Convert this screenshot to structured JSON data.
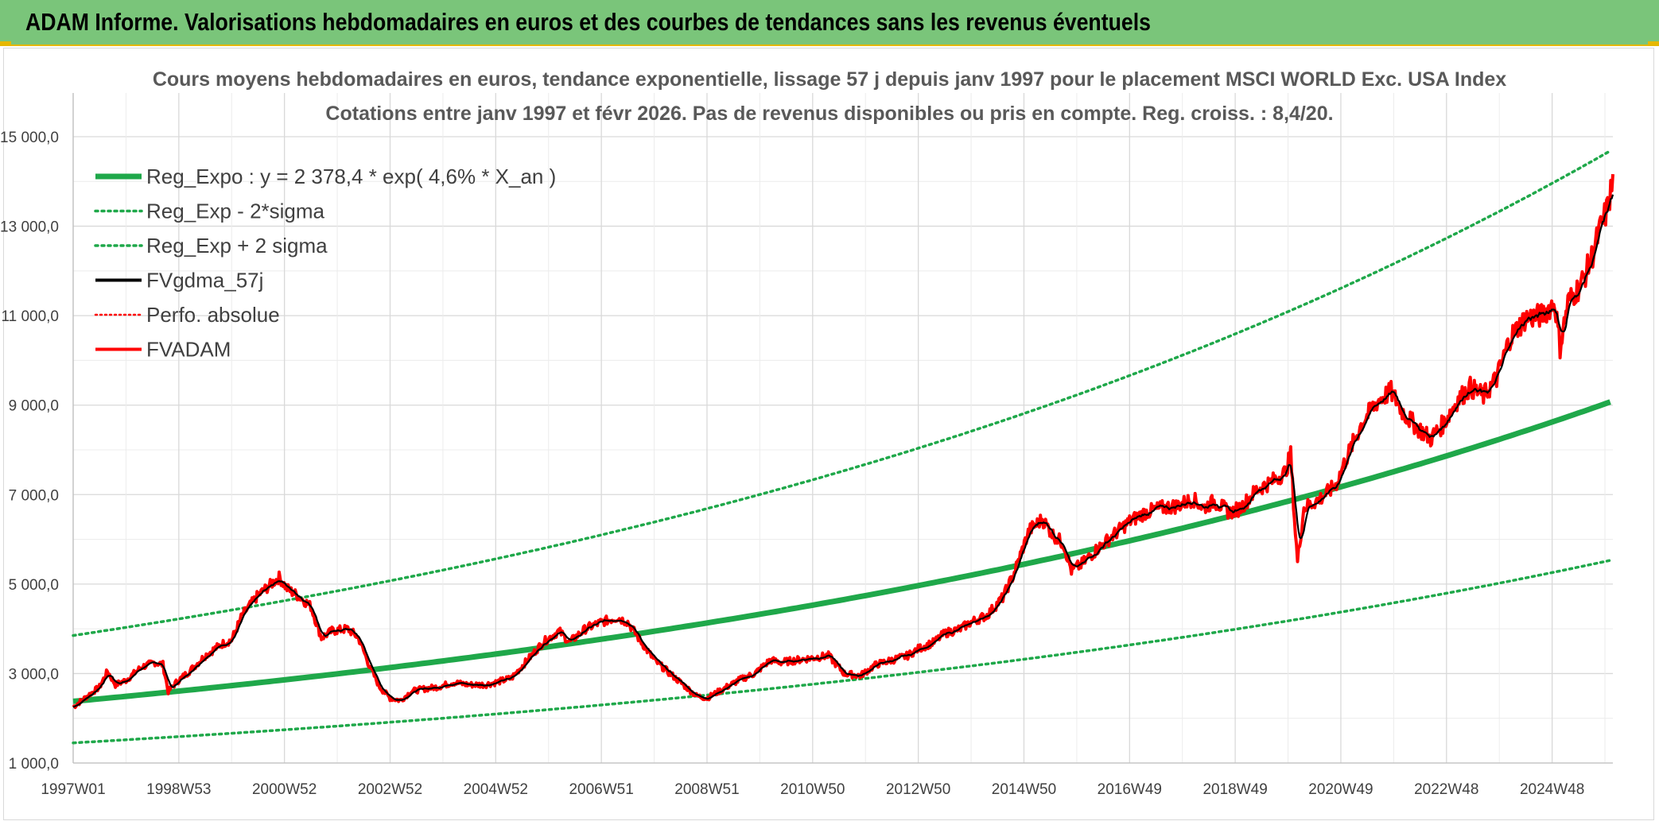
{
  "banner": {
    "title": "ADAM Informe. Valorisations hebdomadaires en euros et des courbes de tendances sans les revenus éventuels",
    "bg_color": "#7ac57a"
  },
  "chart_data": {
    "type": "line",
    "title": "Cours moyens hebdomadaires en euros, tendance exponentielle, lissage 57 j depuis janv 1997 pour le placement MSCI WORLD Exc. USA Index",
    "subtitle": "Cotations entre janv 1997 et févr 2026. Pas de revenus disponibles ou pris en compte. Reg. croiss. : 8,4/20.",
    "xlabel": "",
    "ylabel": "",
    "ylim": [
      1000,
      15000
    ],
    "grid": true,
    "legend_position": "top-left",
    "y_ticks": [
      "1 000,0",
      "3 000,0",
      "5 000,0",
      "7 000,0",
      "9 000,0",
      "11 000,0",
      "13 000,0",
      "15 000,0"
    ],
    "x_ticks": [
      "1997W01",
      "1998W53",
      "2000W52",
      "2002W52",
      "2004W52",
      "2006W51",
      "2008W51",
      "2010W50",
      "2012W50",
      "2014W50",
      "2016W49",
      "2018W49",
      "2020W49",
      "2022W48",
      "2024W48"
    ],
    "x_tick_years": [
      1997.0,
      1999.0,
      2001.0,
      2003.0,
      2005.0,
      2007.0,
      2009.0,
      2011.0,
      2013.0,
      2015.0,
      2017.0,
      2019.0,
      2021.0,
      2023.0,
      2025.0
    ],
    "x_range": [
      1997.0,
      2026.15
    ],
    "series": [
      {
        "name": "Reg_Expo : y = 2 378,4 * exp( 4,6% *  X_an )",
        "color": "#1fa84a",
        "style": "solid-thick",
        "formula": {
          "a": 2378.4,
          "r": 0.046
        }
      },
      {
        "name": "Reg_Exp - 2*sigma",
        "color": "#1fa84a",
        "style": "dotted",
        "formula": {
          "a": 1450,
          "r": 0.046
        }
      },
      {
        "name": "Reg_Exp + 2 sigma",
        "color": "#1fa84a",
        "style": "dotted",
        "formula": {
          "a": 3850,
          "r": 0.046
        }
      },
      {
        "name": "FVgdma_57j",
        "color": "#000000",
        "style": "solid"
      },
      {
        "name": "Perfo. absolue",
        "color": "#ff0000",
        "style": "dotted"
      },
      {
        "name": "FVADAM",
        "color": "#ff0000",
        "style": "solid",
        "points": [
          [
            1997.0,
            2250
          ],
          [
            1997.25,
            2480
          ],
          [
            1997.5,
            2700
          ],
          [
            1997.65,
            3050
          ],
          [
            1997.8,
            2750
          ],
          [
            1998.0,
            2850
          ],
          [
            1998.3,
            3150
          ],
          [
            1998.55,
            3250
          ],
          [
            1998.7,
            3200
          ],
          [
            1998.8,
            2600
          ],
          [
            1998.95,
            2800
          ],
          [
            1999.2,
            3050
          ],
          [
            1999.5,
            3400
          ],
          [
            1999.8,
            3650
          ],
          [
            2000.0,
            3750
          ],
          [
            2000.2,
            4300
          ],
          [
            2000.5,
            4750
          ],
          [
            2000.75,
            5000
          ],
          [
            2000.9,
            5150
          ],
          [
            2001.05,
            4900
          ],
          [
            2001.3,
            4700
          ],
          [
            2001.5,
            4500
          ],
          [
            2001.7,
            3800
          ],
          [
            2001.9,
            3950
          ],
          [
            2002.2,
            4000
          ],
          [
            2002.4,
            3800
          ],
          [
            2002.6,
            3200
          ],
          [
            2002.8,
            2700
          ],
          [
            2003.0,
            2450
          ],
          [
            2003.2,
            2400
          ],
          [
            2003.4,
            2600
          ],
          [
            2003.6,
            2650
          ],
          [
            2003.9,
            2700
          ],
          [
            2004.2,
            2800
          ],
          [
            2004.5,
            2750
          ],
          [
            2004.8,
            2750
          ],
          [
            2005.0,
            2800
          ],
          [
            2005.3,
            2900
          ],
          [
            2005.6,
            3300
          ],
          [
            2005.9,
            3700
          ],
          [
            2006.2,
            3950
          ],
          [
            2006.4,
            3700
          ],
          [
            2006.7,
            4000
          ],
          [
            2007.0,
            4150
          ],
          [
            2007.3,
            4250
          ],
          [
            2007.5,
            4150
          ],
          [
            2007.7,
            3800
          ],
          [
            2008.0,
            3300
          ],
          [
            2008.2,
            3100
          ],
          [
            2008.5,
            2800
          ],
          [
            2008.8,
            2500
          ],
          [
            2009.0,
            2450
          ],
          [
            2009.3,
            2650
          ],
          [
            2009.6,
            2850
          ],
          [
            2009.9,
            3000
          ],
          [
            2010.2,
            3300
          ],
          [
            2010.4,
            3250
          ],
          [
            2010.7,
            3300
          ],
          [
            2011.0,
            3350
          ],
          [
            2011.3,
            3400
          ],
          [
            2011.6,
            3000
          ],
          [
            2011.9,
            2950
          ],
          [
            2012.2,
            3200
          ],
          [
            2012.5,
            3300
          ],
          [
            2012.8,
            3400
          ],
          [
            2013.0,
            3550
          ],
          [
            2013.3,
            3700
          ],
          [
            2013.5,
            3900
          ],
          [
            2013.8,
            4000
          ],
          [
            2014.0,
            4150
          ],
          [
            2014.3,
            4300
          ],
          [
            2014.6,
            4700
          ],
          [
            2014.8,
            5200
          ],
          [
            2015.1,
            6200
          ],
          [
            2015.35,
            6450
          ],
          [
            2015.55,
            6100
          ],
          [
            2015.75,
            5900
          ],
          [
            2015.9,
            5300
          ],
          [
            2016.1,
            5450
          ],
          [
            2016.4,
            5800
          ],
          [
            2016.7,
            6100
          ],
          [
            2017.0,
            6400
          ],
          [
            2017.3,
            6600
          ],
          [
            2017.6,
            6700
          ],
          [
            2017.9,
            6750
          ],
          [
            2018.2,
            6900
          ],
          [
            2018.4,
            6700
          ],
          [
            2018.6,
            6850
          ],
          [
            2018.9,
            6600
          ],
          [
            2019.1,
            6700
          ],
          [
            2019.4,
            7100
          ],
          [
            2019.7,
            7300
          ],
          [
            2019.95,
            7500
          ],
          [
            2020.05,
            7900
          ],
          [
            2020.12,
            6500
          ],
          [
            2020.18,
            5500
          ],
          [
            2020.3,
            6700
          ],
          [
            2020.6,
            6900
          ],
          [
            2020.9,
            7200
          ],
          [
            2021.1,
            7800
          ],
          [
            2021.4,
            8600
          ],
          [
            2021.7,
            9100
          ],
          [
            2021.95,
            9300
          ],
          [
            2022.2,
            8800
          ],
          [
            2022.45,
            8500
          ],
          [
            2022.7,
            8250
          ],
          [
            2022.95,
            8600
          ],
          [
            2023.2,
            9100
          ],
          [
            2023.45,
            9400
          ],
          [
            2023.7,
            9200
          ],
          [
            2023.95,
            9600
          ],
          [
            2024.2,
            10500
          ],
          [
            2024.5,
            10950
          ],
          [
            2024.8,
            11000
          ],
          [
            2025.05,
            11300
          ],
          [
            2025.15,
            10300
          ],
          [
            2025.3,
            11300
          ],
          [
            2025.55,
            11700
          ],
          [
            2025.75,
            12300
          ],
          [
            2025.9,
            12900
          ],
          [
            2026.05,
            13400
          ],
          [
            2026.15,
            14000
          ]
        ]
      }
    ]
  }
}
